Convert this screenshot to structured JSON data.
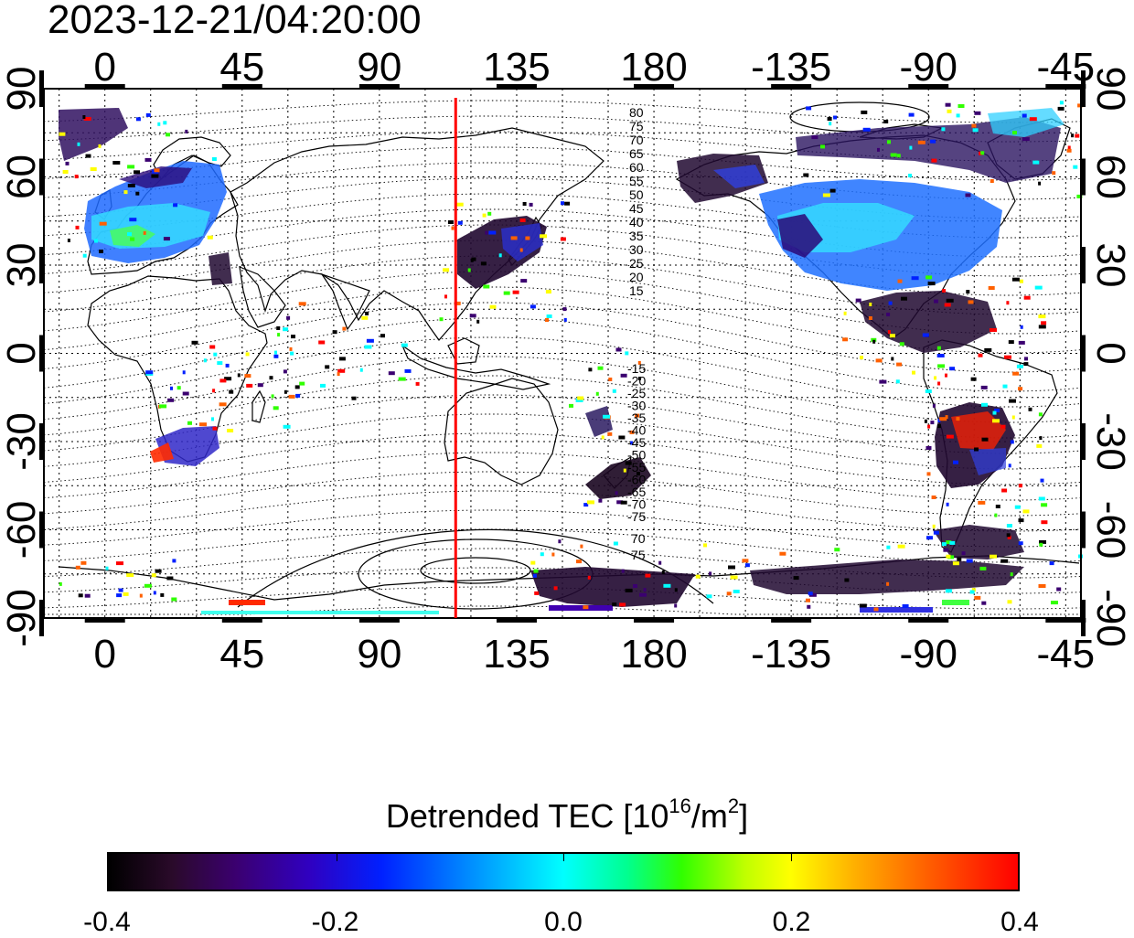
{
  "title": "2023-12-21/04:20:00",
  "map": {
    "projection": "equirectangular",
    "x_ticks": [
      "0",
      "45",
      "90",
      "135",
      "180",
      "-135",
      "-90",
      "-45"
    ],
    "x_tick_longitudes": [
      0,
      45,
      90,
      135,
      180,
      -135,
      -90,
      -45
    ],
    "y_ticks": [
      "90",
      "60",
      "30",
      "0",
      "-30",
      "-60",
      "-90"
    ],
    "y_tick_latitudes": [
      90,
      60,
      30,
      0,
      -30,
      -60,
      -90
    ],
    "lon_range": [
      -20,
      320
    ],
    "lat_range": [
      -90,
      90
    ],
    "grid": true,
    "marker_longitude": 115,
    "marker_color": "#ff0000",
    "contour_labels_north": [
      "80",
      "75",
      "70",
      "65",
      "60",
      "55",
      "50",
      "45",
      "40",
      "35",
      "30",
      "25",
      "20",
      "15"
    ],
    "contour_labels_south": [
      "-15",
      "-20",
      "-25",
      "-30",
      "-35",
      "-40",
      "-45",
      "-50",
      "-55",
      "-60",
      "-65",
      "-70",
      "-75"
    ],
    "contour_labels_pole": [
      "70",
      "75"
    ]
  },
  "colorbar": {
    "title_main": "Detrended TEC  [10",
    "title_exp1": "16",
    "title_mid": "/m",
    "title_exp2": "2",
    "title_end": "]",
    "tick_labels": [
      "-0.4",
      "-0.2",
      "0.0",
      "0.2",
      "0.4"
    ],
    "tick_values": [
      -0.4,
      -0.2,
      0.0,
      0.2,
      0.4
    ],
    "range": [
      -0.4,
      0.4
    ],
    "colors": [
      "#000000",
      "#3b0070",
      "#0020ff",
      "#00ffff",
      "#30ff00",
      "#ffff00",
      "#ff6000",
      "#ff0000"
    ]
  }
}
